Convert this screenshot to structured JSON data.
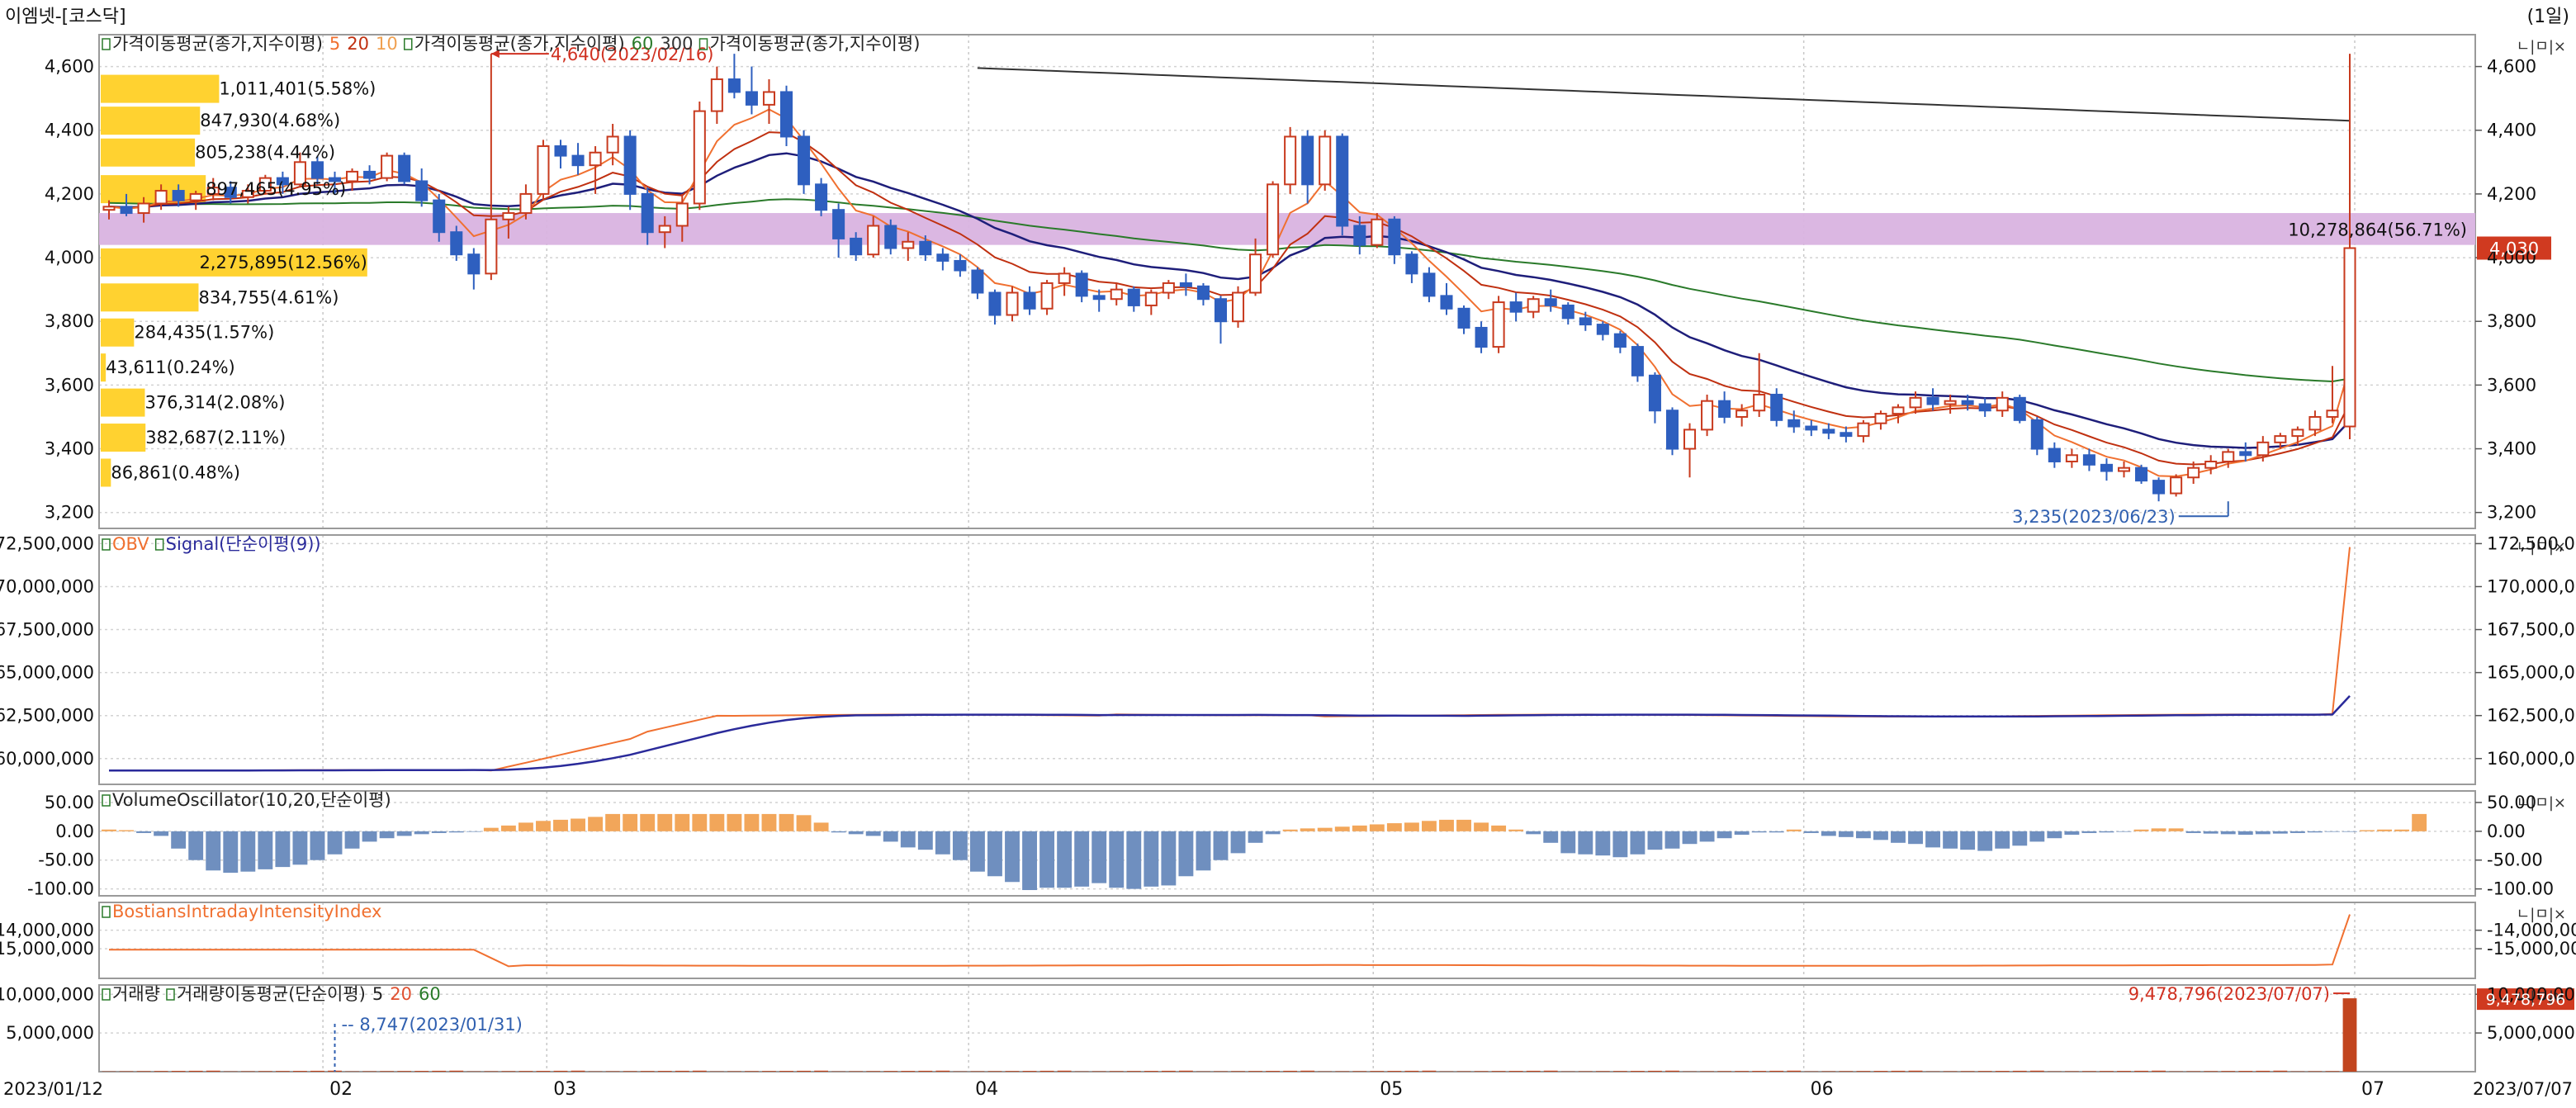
{
  "window": {
    "title": "이엠넷-[코스닥]",
    "period": "(1일)"
  },
  "panel_buttons": "ㄴ|ㅁ|×",
  "chart_data": [
    {
      "type": "candlestick",
      "panel": "price",
      "legend": [
        {
          "text": "가격이동평균(종가,지수이평)",
          "color": "#222222"
        },
        {
          "text": "5",
          "color": "#f07030"
        },
        {
          "text": "20",
          "color": "#c03010"
        },
        {
          "text": "10",
          "color": "#f0a050"
        },
        {
          "text": "가격이동평균(종가,지수이평)",
          "color": "#222222"
        },
        {
          "text": "60",
          "color": "#2a7a2a"
        },
        {
          "text": "300",
          "color": "#333333"
        },
        {
          "text": "가격이동평균(종가,지수이평)",
          "color": "#222222"
        }
      ],
      "ylim": [
        3150,
        4700
      ],
      "yticks": [
        "3,200",
        "3,400",
        "3,600",
        "3,800",
        "4,000",
        "4,200",
        "4,400",
        "4,600"
      ],
      "candles_ohlc": [
        [
          4150,
          4180,
          4120,
          4160
        ],
        [
          4160,
          4200,
          4130,
          4140
        ],
        [
          4140,
          4190,
          4110,
          4170
        ],
        [
          4170,
          4230,
          4150,
          4210
        ],
        [
          4210,
          4230,
          4160,
          4180
        ],
        [
          4180,
          4210,
          4150,
          4200
        ],
        [
          4200,
          4250,
          4180,
          4220
        ],
        [
          4220,
          4240,
          4170,
          4190
        ],
        [
          4190,
          4230,
          4170,
          4210
        ],
        [
          4210,
          4260,
          4200,
          4250
        ],
        [
          4250,
          4270,
          4200,
          4230
        ],
        [
          4230,
          4330,
          4220,
          4300
        ],
        [
          4300,
          4320,
          4230,
          4250
        ],
        [
          4250,
          4270,
          4200,
          4240
        ],
        [
          4240,
          4280,
          4210,
          4270
        ],
        [
          4270,
          4290,
          4230,
          4250
        ],
        [
          4250,
          4330,
          4240,
          4320
        ],
        [
          4320,
          4330,
          4230,
          4240
        ],
        [
          4240,
          4280,
          4160,
          4180
        ],
        [
          4180,
          4200,
          4050,
          4080
        ],
        [
          4080,
          4100,
          3990,
          4010
        ],
        [
          4010,
          4030,
          3900,
          3950
        ],
        [
          3950,
          4640,
          3930,
          4120
        ],
        [
          4120,
          4160,
          4060,
          4140
        ],
        [
          4140,
          4230,
          4120,
          4200
        ],
        [
          4200,
          4370,
          4180,
          4350
        ],
        [
          4350,
          4370,
          4280,
          4320
        ],
        [
          4320,
          4360,
          4260,
          4290
        ],
        [
          4290,
          4350,
          4200,
          4330
        ],
        [
          4330,
          4420,
          4290,
          4380
        ],
        [
          4380,
          4400,
          4150,
          4200
        ],
        [
          4200,
          4220,
          4040,
          4080
        ],
        [
          4080,
          4130,
          4030,
          4100
        ],
        [
          4100,
          4200,
          4050,
          4170
        ],
        [
          4170,
          4490,
          4150,
          4460
        ],
        [
          4460,
          4600,
          4420,
          4560
        ],
        [
          4560,
          4640,
          4500,
          4520
        ],
        [
          4520,
          4600,
          4450,
          4480
        ],
        [
          4480,
          4560,
          4420,
          4520
        ],
        [
          4520,
          4540,
          4350,
          4380
        ],
        [
          4380,
          4400,
          4200,
          4230
        ],
        [
          4230,
          4250,
          4130,
          4150
        ],
        [
          4150,
          4170,
          4000,
          4060
        ],
        [
          4060,
          4080,
          3990,
          4010
        ],
        [
          4010,
          4130,
          4000,
          4100
        ],
        [
          4100,
          4120,
          4010,
          4030
        ],
        [
          4030,
          4080,
          3990,
          4050
        ],
        [
          4050,
          4070,
          3990,
          4010
        ],
        [
          4010,
          4030,
          3960,
          3990
        ],
        [
          3990,
          4010,
          3940,
          3960
        ],
        [
          3960,
          3970,
          3870,
          3890
        ],
        [
          3890,
          3900,
          3790,
          3820
        ],
        [
          3820,
          3910,
          3800,
          3890
        ],
        [
          3890,
          3910,
          3820,
          3840
        ],
        [
          3840,
          3930,
          3820,
          3920
        ],
        [
          3920,
          3970,
          3880,
          3950
        ],
        [
          3950,
          3960,
          3860,
          3880
        ],
        [
          3880,
          3900,
          3830,
          3870
        ],
        [
          3870,
          3920,
          3850,
          3900
        ],
        [
          3900,
          3910,
          3830,
          3850
        ],
        [
          3850,
          3900,
          3820,
          3890
        ],
        [
          3890,
          3930,
          3870,
          3920
        ],
        [
          3920,
          3950,
          3880,
          3910
        ],
        [
          3910,
          3920,
          3850,
          3870
        ],
        [
          3870,
          3880,
          3730,
          3800
        ],
        [
          3800,
          3910,
          3780,
          3890
        ],
        [
          3890,
          4060,
          3880,
          4010
        ],
        [
          4010,
          4240,
          4000,
          4230
        ],
        [
          4230,
          4410,
          4200,
          4380
        ],
        [
          4380,
          4400,
          4170,
          4230
        ],
        [
          4230,
          4400,
          4210,
          4380
        ],
        [
          4380,
          4390,
          4070,
          4100
        ],
        [
          4100,
          4130,
          4010,
          4040
        ],
        [
          4040,
          4140,
          4030,
          4120
        ],
        [
          4120,
          4130,
          3980,
          4010
        ],
        [
          4010,
          4020,
          3920,
          3950
        ],
        [
          3950,
          3970,
          3860,
          3880
        ],
        [
          3880,
          3920,
          3820,
          3840
        ],
        [
          3840,
          3850,
          3760,
          3780
        ],
        [
          3780,
          3800,
          3700,
          3720
        ],
        [
          3720,
          3880,
          3700,
          3860
        ],
        [
          3860,
          3890,
          3800,
          3830
        ],
        [
          3830,
          3880,
          3810,
          3870
        ],
        [
          3870,
          3900,
          3830,
          3850
        ],
        [
          3850,
          3860,
          3790,
          3810
        ],
        [
          3810,
          3830,
          3770,
          3790
        ],
        [
          3790,
          3800,
          3740,
          3760
        ],
        [
          3760,
          3770,
          3700,
          3720
        ],
        [
          3720,
          3730,
          3610,
          3630
        ],
        [
          3630,
          3640,
          3480,
          3520
        ],
        [
          3520,
          3530,
          3380,
          3400
        ],
        [
          3400,
          3480,
          3310,
          3460
        ],
        [
          3460,
          3570,
          3440,
          3550
        ],
        [
          3550,
          3580,
          3480,
          3500
        ],
        [
          3500,
          3540,
          3470,
          3520
        ],
        [
          3520,
          3700,
          3500,
          3570
        ],
        [
          3570,
          3590,
          3470,
          3490
        ],
        [
          3490,
          3520,
          3450,
          3470
        ],
        [
          3470,
          3490,
          3440,
          3460
        ],
        [
          3460,
          3480,
          3430,
          3450
        ],
        [
          3450,
          3470,
          3420,
          3440
        ],
        [
          3440,
          3490,
          3420,
          3480
        ],
        [
          3480,
          3520,
          3460,
          3510
        ],
        [
          3510,
          3540,
          3480,
          3530
        ],
        [
          3530,
          3580,
          3510,
          3560
        ],
        [
          3560,
          3590,
          3520,
          3540
        ],
        [
          3540,
          3570,
          3510,
          3550
        ],
        [
          3550,
          3570,
          3520,
          3540
        ],
        [
          3540,
          3560,
          3500,
          3520
        ],
        [
          3520,
          3580,
          3500,
          3560
        ],
        [
          3560,
          3570,
          3480,
          3490
        ],
        [
          3490,
          3500,
          3380,
          3400
        ],
        [
          3400,
          3420,
          3340,
          3360
        ],
        [
          3360,
          3400,
          3340,
          3380
        ],
        [
          3380,
          3400,
          3330,
          3350
        ],
        [
          3350,
          3370,
          3300,
          3330
        ],
        [
          3330,
          3360,
          3310,
          3340
        ],
        [
          3340,
          3350,
          3290,
          3300
        ],
        [
          3300,
          3310,
          3235,
          3260
        ],
        [
          3260,
          3320,
          3250,
          3310
        ],
        [
          3310,
          3360,
          3290,
          3340
        ],
        [
          3340,
          3380,
          3320,
          3360
        ],
        [
          3360,
          3400,
          3340,
          3390
        ],
        [
          3390,
          3420,
          3360,
          3380
        ],
        [
          3380,
          3440,
          3360,
          3420
        ],
        [
          3420,
          3450,
          3400,
          3440
        ],
        [
          3440,
          3470,
          3410,
          3460
        ],
        [
          3460,
          3520,
          3440,
          3500
        ],
        [
          3500,
          3660,
          3480,
          3520
        ],
        [
          3470,
          4640,
          3430,
          4030
        ]
      ],
      "volume_profile": [
        {
          "label": "1,011,401(5.58%)",
          "price": 4530,
          "share": 5.58
        },
        {
          "label": "847,930(4.68%)",
          "price": 4430,
          "share": 4.68
        },
        {
          "label": "805,238(4.44%)",
          "price": 4330,
          "share": 4.44
        },
        {
          "label": "897,465(4.95%)",
          "price": 4215,
          "share": 4.95
        },
        {
          "label": "2,275,895(12.56%)",
          "price": 3985,
          "share": 12.56
        },
        {
          "label": "834,755(4.61%)",
          "price": 3875,
          "share": 4.61
        },
        {
          "label": "284,435(1.57%)",
          "price": 3765,
          "share": 1.57
        },
        {
          "label": "43,611(0.24%)",
          "price": 3655,
          "share": 0.24
        },
        {
          "label": "376,314(2.08%)",
          "price": 3545,
          "share": 2.08
        },
        {
          "label": "382,687(2.11%)",
          "price": 3435,
          "share": 2.11
        },
        {
          "label": "86,861(0.48%)",
          "price": 3325,
          "share": 0.48
        }
      ],
      "band": {
        "label": "10,278,864(56.71%)",
        "from": 4040,
        "to": 4140
      },
      "annotations": [
        {
          "text": "4,640(2023/02/16)",
          "color": "#d03020",
          "price": 4640
        },
        {
          "text": "3,235(2023/06/23)",
          "color": "#3060b0",
          "price": 3235
        }
      ],
      "current_price": "4,030"
    },
    {
      "type": "line",
      "panel": "obv",
      "legend": [
        {
          "text": "OBV",
          "color": "#f07030"
        },
        {
          "text": "Signal(단순이평(9))",
          "color": "#2a2a9a"
        }
      ],
      "ylim": [
        158500000,
        173000000
      ],
      "yticks": [
        "160,000,000",
        "162,500,000",
        "165,000,000",
        "167,500,000",
        "170,000,000",
        "172,500,000"
      ]
    },
    {
      "type": "bar",
      "panel": "volume_oscillator",
      "legend": [
        {
          "text": "VolumeOscillator(10,20,단순이평)",
          "color": "#222222"
        }
      ],
      "ylim": [
        -112,
        70
      ],
      "yticks": [
        "50.00",
        "0.00",
        "-50.00",
        "-100.00"
      ],
      "values": [
        3,
        2,
        -3,
        -8,
        -30,
        -50,
        -68,
        -72,
        -70,
        -66,
        -62,
        -58,
        -50,
        -40,
        -30,
        -18,
        -12,
        -8,
        -5,
        -3,
        -2,
        -1,
        6,
        10,
        15,
        18,
        20,
        22,
        25,
        30,
        30,
        30,
        30,
        30,
        30,
        30,
        30,
        30,
        30,
        30,
        28,
        15,
        -2,
        -5,
        -8,
        -18,
        -28,
        -32,
        -40,
        -50,
        -70,
        -78,
        -88,
        -102,
        -98,
        -98,
        -96,
        -90,
        -98,
        -100,
        -96,
        -94,
        -78,
        -68,
        -50,
        -38,
        -20,
        -5,
        3,
        5,
        6,
        8,
        10,
        12,
        14,
        15,
        18,
        20,
        20,
        15,
        10,
        3,
        -5,
        -20,
        -38,
        -40,
        -42,
        -45,
        -40,
        -32,
        -30,
        -22,
        -18,
        -12,
        -6,
        -2,
        -2,
        3,
        -3,
        -8,
        -10,
        -12,
        -15,
        -20,
        -22,
        -28,
        -30,
        -32,
        -34,
        -30,
        -25,
        -18,
        -12,
        -6,
        -3,
        -2,
        -1,
        3,
        5,
        5,
        -3,
        -4,
        -5,
        -6,
        -5,
        -4,
        -3,
        -2,
        -1,
        -1,
        2,
        3,
        3,
        30
      ]
    },
    {
      "type": "line",
      "panel": "bostian",
      "legend": [
        {
          "text": "BostiansIntradayIntensityIndex",
          "color": "#f07030"
        }
      ],
      "ylim": [
        -16600000,
        -12500000
      ],
      "yticks": [
        "-14,000,000",
        "-15,000,000"
      ],
      "yticks_left": [
        "-14,000,000",
        "-15,000,000"
      ]
    },
    {
      "type": "bar",
      "panel": "volume",
      "legend": [
        {
          "text": "거래량",
          "color": "#222222"
        },
        {
          "text": "거래량이동평균(단순이평)",
          "color": "#222222"
        },
        {
          "text": "5",
          "color": "#222222"
        },
        {
          "text": "20",
          "color": "#e05030"
        },
        {
          "text": "60",
          "color": "#2a7a2a"
        }
      ],
      "ylim": [
        0,
        11200000
      ],
      "yticks": [
        "5,000,000",
        "10,000,000"
      ],
      "annotations": [
        {
          "text": "8,747(2023/01/31)",
          "color": "#3060b0",
          "value": 8747
        },
        {
          "text": "9,478,796(2023/07/07)",
          "color": "#d03020",
          "value": 9478796
        }
      ],
      "current_value": "9,478,796"
    }
  ],
  "x_axis": {
    "start_label": "2023/01/12",
    "end_label": "2023/07/07",
    "month_labels": [
      "02",
      "03",
      "04",
      "05",
      "06",
      "07"
    ]
  }
}
